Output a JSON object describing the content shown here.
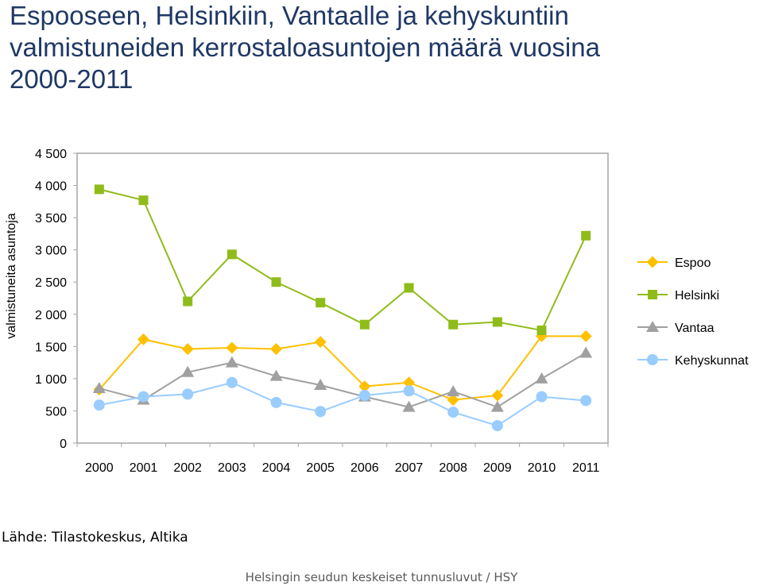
{
  "title_lines": [
    "Espooseen, Helsinkiin, Vantaalle ja kehyskuntiin",
    "valmistuneiden kerrostaloasuntojen määrä vuosina",
    "2000-2011"
  ],
  "source": "Lähde: Tilastokeskus, Altika",
  "footer": "Helsingin seudun keskeiset tunnusluvut / HSY",
  "chart_data": {
    "type": "line",
    "title": "",
    "xlabel": "",
    "ylabel": "valmistuneita asuntoja",
    "categories": [
      "2000",
      "2001",
      "2002",
      "2003",
      "2004",
      "2005",
      "2006",
      "2007",
      "2008",
      "2009",
      "2010",
      "2011"
    ],
    "ylim": [
      0,
      4500
    ],
    "yticks": [
      0,
      500,
      1000,
      1500,
      2000,
      2500,
      3000,
      3500,
      4000,
      4500
    ],
    "ytick_labels": [
      "0",
      "500",
      "1 000",
      "1 500",
      "2 000",
      "2 500",
      "3 000",
      "3 500",
      "4 000",
      "4 500"
    ],
    "grid": false,
    "legend_position": "right",
    "series": [
      {
        "name": "Espoo",
        "color": "#ffc000",
        "marker": "diamond",
        "values": [
          830,
          1610,
          1460,
          1480,
          1460,
          1570,
          880,
          940,
          670,
          740,
          1660,
          1660
        ]
      },
      {
        "name": "Helsinki",
        "color": "#8fbc1a",
        "marker": "square",
        "values": [
          3940,
          3770,
          2200,
          2930,
          2500,
          2180,
          1840,
          2410,
          1840,
          1880,
          1750,
          3220
        ]
      },
      {
        "name": "Vantaa",
        "color": "#a0a0a0",
        "marker": "triangle",
        "values": [
          850,
          670,
          1100,
          1250,
          1040,
          900,
          720,
          560,
          800,
          560,
          1000,
          1400
        ]
      },
      {
        "name": "Kehyskunnat",
        "color": "#99ccff",
        "marker": "circle",
        "values": [
          590,
          720,
          760,
          940,
          630,
          490,
          740,
          810,
          480,
          270,
          720,
          660
        ]
      }
    ]
  }
}
